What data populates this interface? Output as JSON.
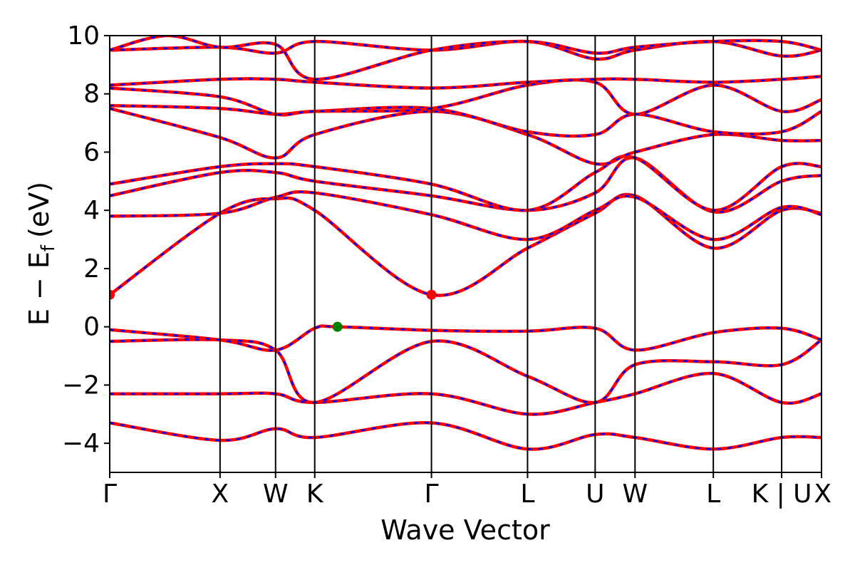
{
  "chart_data": {
    "type": "line",
    "xlabel": "Wave Vector",
    "ylabel": "E − E",
    "ylabel_subscript": "f",
    "ylabel_unit": "(eV)",
    "ylim": [
      -5,
      10
    ],
    "yticks": [
      -4,
      -2,
      0,
      2,
      4,
      6,
      8,
      10
    ],
    "ytick_labels": [
      "−4",
      "−2",
      "0",
      "2",
      "4",
      "6",
      "8",
      "10"
    ],
    "xlim": [
      0,
      1
    ],
    "kpoint_positions": [
      0,
      0.155,
      0.233,
      0.288,
      0.452,
      0.587,
      0.682,
      0.738,
      0.848,
      0.944,
      1.0
    ],
    "kpoint_labels": [
      "Γ",
      "X",
      "W",
      "K",
      "Γ",
      "L",
      "U",
      "W",
      "L",
      "K | U",
      "X"
    ],
    "special_point_lines": [
      0.155,
      0.233,
      0.288,
      0.452,
      0.587,
      0.682,
      0.738,
      0.848,
      0.944
    ],
    "grid": false,
    "legend": "none",
    "colors": {
      "band_solid": "#ff0000",
      "band_dashed": "#0000ff",
      "cbm_marker": "#ff0000",
      "vbm_marker": "#008000"
    },
    "markers": [
      {
        "name": "CBM",
        "x": 0.0,
        "y": 1.1,
        "color": "#ff0000"
      },
      {
        "name": "CBM",
        "x": 0.452,
        "y": 1.1,
        "color": "#ff0000"
      },
      {
        "name": "VBM",
        "x": 0.32,
        "y": 0.0,
        "color": "#008000"
      }
    ],
    "bands": [
      {
        "points": [
          [
            0,
            -3.3
          ],
          [
            0.155,
            -3.9
          ],
          [
            0.233,
            -3.5
          ],
          [
            0.288,
            -3.8
          ],
          [
            0.452,
            -3.3
          ],
          [
            0.587,
            -4.2
          ],
          [
            0.682,
            -3.7
          ],
          [
            0.738,
            -3.8
          ],
          [
            0.848,
            -4.2
          ],
          [
            0.944,
            -3.8
          ],
          [
            1.0,
            -3.8
          ]
        ]
      },
      {
        "points": [
          [
            0,
            -2.3
          ],
          [
            0.155,
            -2.3
          ],
          [
            0.233,
            -2.3
          ],
          [
            0.288,
            -2.6
          ],
          [
            0.452,
            -2.3
          ],
          [
            0.587,
            -3.0
          ],
          [
            0.682,
            -2.6
          ],
          [
            0.738,
            -2.3
          ],
          [
            0.848,
            -1.6
          ],
          [
            0.944,
            -2.6
          ],
          [
            1.0,
            -2.3
          ]
        ]
      },
      {
        "points": [
          [
            0,
            -0.5
          ],
          [
            0.155,
            -0.45
          ],
          [
            0.233,
            -0.8
          ],
          [
            0.288,
            -2.6
          ],
          [
            0.452,
            -0.5
          ],
          [
            0.587,
            -1.7
          ],
          [
            0.682,
            -2.6
          ],
          [
            0.738,
            -1.3
          ],
          [
            0.848,
            -1.2
          ],
          [
            0.944,
            -1.3
          ],
          [
            1.0,
            -0.45
          ]
        ]
      },
      {
        "points": [
          [
            0,
            -0.1
          ],
          [
            0.155,
            -0.45
          ],
          [
            0.233,
            -0.8
          ],
          [
            0.288,
            -0.05
          ],
          [
            0.32,
            0.0
          ],
          [
            0.452,
            -0.12
          ],
          [
            0.587,
            -0.15
          ],
          [
            0.682,
            -0.05
          ],
          [
            0.738,
            -0.8
          ],
          [
            0.848,
            -0.2
          ],
          [
            0.944,
            -0.05
          ],
          [
            1.0,
            -0.45
          ]
        ]
      },
      {
        "points": [
          [
            0,
            1.1
          ],
          [
            0.155,
            3.9
          ],
          [
            0.233,
            4.4
          ],
          [
            0.288,
            4.0
          ],
          [
            0.452,
            1.1
          ],
          [
            0.587,
            2.7
          ],
          [
            0.682,
            3.9
          ],
          [
            0.738,
            4.5
          ],
          [
            0.848,
            2.7
          ],
          [
            0.944,
            4.0
          ],
          [
            1.0,
            3.9
          ]
        ]
      },
      {
        "points": [
          [
            0,
            3.8
          ],
          [
            0.155,
            3.9
          ],
          [
            0.233,
            4.45
          ],
          [
            0.288,
            4.6
          ],
          [
            0.452,
            3.85
          ],
          [
            0.587,
            3.0
          ],
          [
            0.682,
            4.0
          ],
          [
            0.738,
            4.45
          ],
          [
            0.848,
            3.0
          ],
          [
            0.944,
            4.1
          ],
          [
            1.0,
            3.85
          ]
        ]
      },
      {
        "points": [
          [
            0,
            4.5
          ],
          [
            0.155,
            5.3
          ],
          [
            0.233,
            5.3
          ],
          [
            0.288,
            5.0
          ],
          [
            0.452,
            4.5
          ],
          [
            0.587,
            4.0
          ],
          [
            0.682,
            4.6
          ],
          [
            0.738,
            5.8
          ],
          [
            0.848,
            3.95
          ],
          [
            0.944,
            5.0
          ],
          [
            1.0,
            5.2
          ]
        ]
      },
      {
        "points": [
          [
            0,
            4.9
          ],
          [
            0.155,
            5.5
          ],
          [
            0.233,
            5.6
          ],
          [
            0.288,
            5.5
          ],
          [
            0.452,
            4.9
          ],
          [
            0.587,
            4.0
          ],
          [
            0.682,
            5.3
          ],
          [
            0.738,
            5.8
          ],
          [
            0.848,
            4.0
          ],
          [
            0.944,
            5.5
          ],
          [
            1.0,
            5.5
          ]
        ]
      },
      {
        "points": [
          [
            0,
            7.5
          ],
          [
            0.155,
            6.5
          ],
          [
            0.233,
            5.8
          ],
          [
            0.288,
            6.6
          ],
          [
            0.452,
            7.4
          ],
          [
            0.587,
            6.6
          ],
          [
            0.682,
            5.6
          ],
          [
            0.738,
            6.0
          ],
          [
            0.848,
            6.6
          ],
          [
            0.944,
            6.4
          ],
          [
            1.0,
            6.4
          ]
        ]
      },
      {
        "points": [
          [
            0,
            7.6
          ],
          [
            0.155,
            7.5
          ],
          [
            0.233,
            7.3
          ],
          [
            0.288,
            7.4
          ],
          [
            0.452,
            7.5
          ],
          [
            0.587,
            6.7
          ],
          [
            0.682,
            6.6
          ],
          [
            0.738,
            7.3
          ],
          [
            0.848,
            6.7
          ],
          [
            0.944,
            6.7
          ],
          [
            1.0,
            7.4
          ]
        ]
      },
      {
        "points": [
          [
            0,
            8.2
          ],
          [
            0.155,
            7.9
          ],
          [
            0.233,
            7.3
          ],
          [
            0.288,
            7.4
          ],
          [
            0.452,
            7.5
          ],
          [
            0.587,
            8.3
          ],
          [
            0.682,
            8.4
          ],
          [
            0.738,
            7.3
          ],
          [
            0.848,
            8.3
          ],
          [
            0.944,
            7.4
          ],
          [
            1.0,
            7.8
          ]
        ]
      },
      {
        "points": [
          [
            0,
            8.3
          ],
          [
            0.155,
            8.5
          ],
          [
            0.233,
            8.5
          ],
          [
            0.288,
            8.4
          ],
          [
            0.452,
            8.2
          ],
          [
            0.587,
            8.4
          ],
          [
            0.682,
            8.5
          ],
          [
            0.738,
            8.5
          ],
          [
            0.848,
            8.4
          ],
          [
            0.944,
            8.5
          ],
          [
            1.0,
            8.6
          ]
        ]
      },
      {
        "points": [
          [
            0,
            9.5
          ],
          [
            0.155,
            9.6
          ],
          [
            0.233,
            9.4
          ],
          [
            0.288,
            9.8
          ],
          [
            0.452,
            9.5
          ],
          [
            0.587,
            9.8
          ],
          [
            0.682,
            9.2
          ],
          [
            0.738,
            9.5
          ],
          [
            0.848,
            9.8
          ],
          [
            0.944,
            9.3
          ],
          [
            1.0,
            9.5
          ]
        ]
      },
      {
        "points": [
          [
            0,
            9.5
          ],
          [
            0.08,
            10.0
          ],
          [
            0.155,
            9.6
          ],
          [
            0.233,
            9.7
          ],
          [
            0.288,
            8.5
          ],
          [
            0.452,
            9.5
          ],
          [
            0.587,
            9.8
          ],
          [
            0.682,
            9.4
          ],
          [
            0.738,
            9.6
          ],
          [
            0.848,
            9.8
          ],
          [
            0.944,
            9.8
          ],
          [
            1.0,
            9.5
          ]
        ]
      }
    ]
  }
}
